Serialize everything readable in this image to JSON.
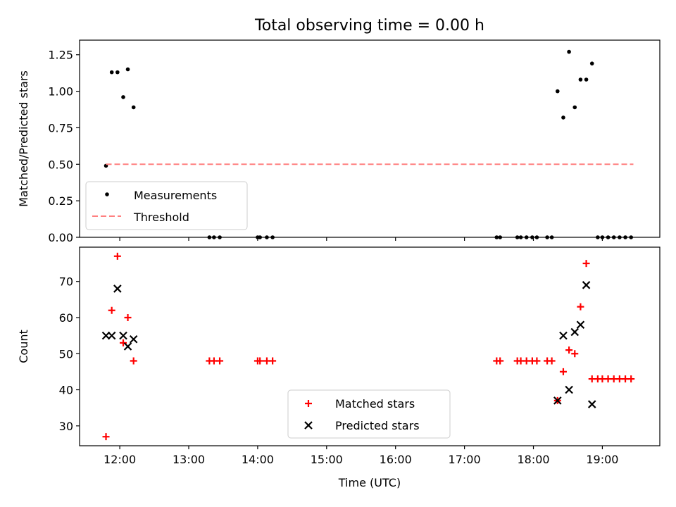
{
  "title": "Total observing time = 0.00 h",
  "colors": {
    "measurement": "#000000",
    "threshold": "#ff8080",
    "matched": "#ff0000",
    "predicted": "#000000",
    "axes": "#000000",
    "background": "#ffffff"
  },
  "chart_data": [
    {
      "type": "scatter",
      "panel": "top",
      "title": "Total observing time = 0.00 h",
      "xlabel": "",
      "ylabel": "Matched/Predicted stars",
      "x_is_time": true,
      "xlim": [
        "11:25",
        "19:50"
      ],
      "ylim": [
        0,
        1.35
      ],
      "yticks": [
        0,
        0.25,
        0.5,
        0.75,
        1.0,
        1.25
      ],
      "ytick_labels": [
        "0.00",
        "0.25",
        "0.50",
        "0.75",
        "1.00",
        "1.25"
      ],
      "xticks": [
        "12:00",
        "13:00",
        "14:00",
        "15:00",
        "16:00",
        "17:00",
        "18:00",
        "19:00"
      ],
      "grid": false,
      "legend_position": "lower-left",
      "legend": [
        "Measurements",
        "Threshold"
      ],
      "series": [
        {
          "name": "Measurements",
          "marker": "dot",
          "points": [
            [
              "11:48",
              0.49
            ],
            [
              "11:53",
              1.13
            ],
            [
              "11:58",
              1.13
            ],
            [
              "12:03",
              0.96
            ],
            [
              "12:07",
              1.15
            ],
            [
              "12:12",
              0.89
            ],
            [
              "13:18",
              0.0
            ],
            [
              "13:22",
              0.0
            ],
            [
              "13:27",
              0.0
            ],
            [
              "14:00",
              0.0
            ],
            [
              "14:02",
              0.0
            ],
            [
              "14:08",
              0.0
            ],
            [
              "14:13",
              0.0
            ],
            [
              "17:28",
              0.0
            ],
            [
              "17:31",
              0.0
            ],
            [
              "17:46",
              0.0
            ],
            [
              "17:49",
              0.0
            ],
            [
              "17:54",
              0.0
            ],
            [
              "17:59",
              0.0
            ],
            [
              "18:03",
              0.0
            ],
            [
              "18:12",
              0.0
            ],
            [
              "18:16",
              0.0
            ],
            [
              "18:21",
              1.0
            ],
            [
              "18:26",
              0.82
            ],
            [
              "18:31",
              1.27
            ],
            [
              "18:36",
              0.89
            ],
            [
              "18:41",
              1.08
            ],
            [
              "18:46",
              1.08
            ],
            [
              "18:51",
              1.19
            ],
            [
              "18:56",
              0.0
            ],
            [
              "19:00",
              0.0
            ],
            [
              "19:05",
              0.0
            ],
            [
              "19:10",
              0.0
            ],
            [
              "19:15",
              0.0
            ],
            [
              "19:20",
              0.0
            ],
            [
              "19:25",
              0.0
            ]
          ]
        },
        {
          "name": "Threshold",
          "style": "dashed",
          "points": [
            [
              "11:48",
              0.5
            ],
            [
              "19:27",
              0.5
            ]
          ]
        }
      ]
    },
    {
      "type": "scatter",
      "panel": "bottom",
      "xlabel": "Time (UTC)",
      "ylabel": "Count",
      "x_is_time": true,
      "xlim": [
        "11:25",
        "19:50"
      ],
      "ylim": [
        24.5,
        79.5
      ],
      "yticks": [
        30,
        40,
        50,
        60,
        70
      ],
      "ytick_labels": [
        "30",
        "40",
        "50",
        "60",
        "70"
      ],
      "xticks": [
        "12:00",
        "13:00",
        "14:00",
        "15:00",
        "16:00",
        "17:00",
        "18:00",
        "19:00"
      ],
      "xtick_labels": [
        "12:00",
        "13:00",
        "14:00",
        "15:00",
        "16:00",
        "17:00",
        "18:00",
        "19:00"
      ],
      "grid": false,
      "legend_position": "lower-center",
      "legend": [
        "Matched stars",
        "Predicted stars"
      ],
      "series": [
        {
          "name": "Matched stars",
          "marker": "plus",
          "points": [
            [
              "11:48",
              27
            ],
            [
              "11:53",
              62
            ],
            [
              "11:58",
              77
            ],
            [
              "12:03",
              53
            ],
            [
              "12:07",
              60
            ],
            [
              "12:12",
              48
            ],
            [
              "13:18",
              48
            ],
            [
              "13:22",
              48
            ],
            [
              "13:27",
              48
            ],
            [
              "14:00",
              48
            ],
            [
              "14:02",
              48
            ],
            [
              "14:08",
              48
            ],
            [
              "14:13",
              48
            ],
            [
              "17:28",
              48
            ],
            [
              "17:31",
              48
            ],
            [
              "17:46",
              48
            ],
            [
              "17:49",
              48
            ],
            [
              "17:54",
              48
            ],
            [
              "17:59",
              48
            ],
            [
              "18:03",
              48
            ],
            [
              "18:12",
              48
            ],
            [
              "18:16",
              48
            ],
            [
              "18:21",
              37
            ],
            [
              "18:26",
              45
            ],
            [
              "18:31",
              51
            ],
            [
              "18:36",
              50
            ],
            [
              "18:41",
              63
            ],
            [
              "18:46",
              75
            ],
            [
              "18:51",
              43
            ],
            [
              "18:56",
              43
            ],
            [
              "19:00",
              43
            ],
            [
              "19:05",
              43
            ],
            [
              "19:10",
              43
            ],
            [
              "19:15",
              43
            ],
            [
              "19:20",
              43
            ],
            [
              "19:25",
              43
            ]
          ]
        },
        {
          "name": "Predicted stars",
          "marker": "x",
          "points": [
            [
              "11:48",
              55
            ],
            [
              "11:53",
              55
            ],
            [
              "11:58",
              68
            ],
            [
              "12:03",
              55
            ],
            [
              "12:07",
              52
            ],
            [
              "12:12",
              54
            ],
            [
              "18:21",
              37
            ],
            [
              "18:26",
              55
            ],
            [
              "18:31",
              40
            ],
            [
              "18:36",
              56
            ],
            [
              "18:41",
              58
            ],
            [
              "18:46",
              69
            ],
            [
              "18:51",
              36
            ]
          ]
        }
      ]
    }
  ]
}
